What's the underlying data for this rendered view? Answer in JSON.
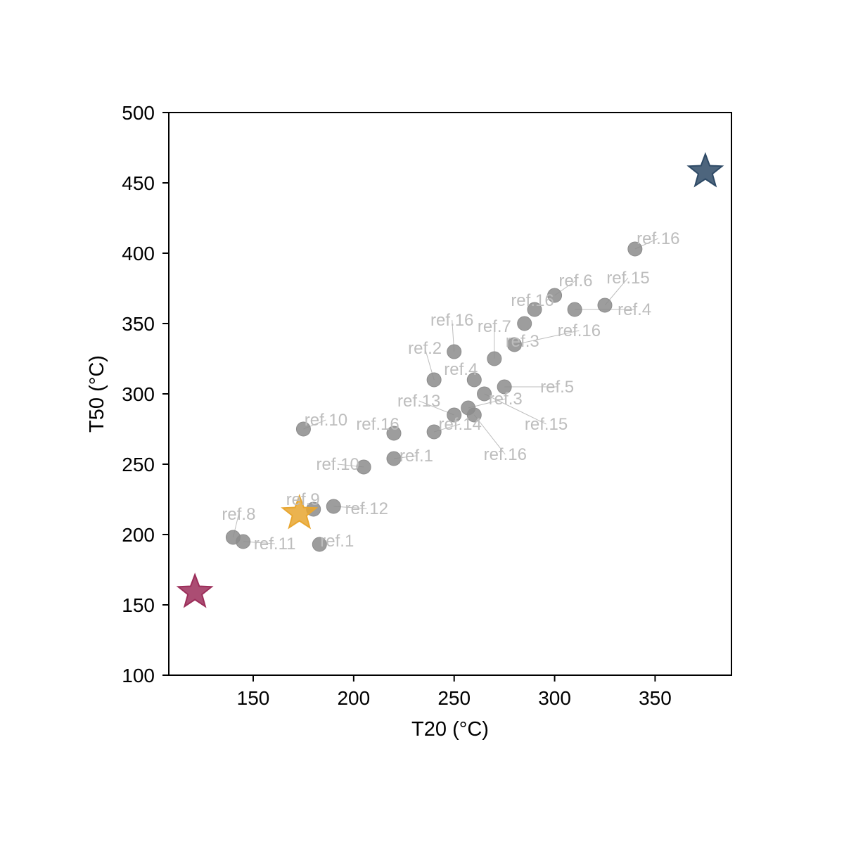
{
  "chart_data": {
    "type": "scatter",
    "xlabel": "T20 (°C)",
    "ylabel": "T50 (°C)",
    "xlim": [
      108,
      388
    ],
    "ylim": [
      100,
      500
    ],
    "xticks": [
      150,
      200,
      250,
      300,
      350
    ],
    "yticks": [
      100,
      150,
      200,
      250,
      300,
      350,
      400,
      450,
      500
    ],
    "grid": false,
    "series": [
      {
        "marker": "circle",
        "color": "#8c8c8c",
        "label_color": "#bdbdbd",
        "points": [
          {
            "x": 340,
            "y": 403,
            "label": "ref.16"
          },
          {
            "x": 300,
            "y": 370,
            "label": "ref.6"
          },
          {
            "x": 290,
            "y": 360,
            "label": "ref.16"
          },
          {
            "x": 310,
            "y": 360,
            "label": "ref.4"
          },
          {
            "x": 325,
            "y": 363,
            "label": "ref.15"
          },
          {
            "x": 285,
            "y": 350,
            "label": "ref.3"
          },
          {
            "x": 280,
            "y": 335,
            "label": "ref.16"
          },
          {
            "x": 270,
            "y": 325,
            "label": "ref.7"
          },
          {
            "x": 250,
            "y": 330,
            "label": "ref.16"
          },
          {
            "x": 240,
            "y": 310,
            "label": "ref.2"
          },
          {
            "x": 260,
            "y": 310,
            "label": "ref.4"
          },
          {
            "x": 275,
            "y": 305,
            "label": "ref.5"
          },
          {
            "x": 265,
            "y": 300,
            "label": "ref.15"
          },
          {
            "x": 257,
            "y": 290,
            "label": "ref.3"
          },
          {
            "x": 250,
            "y": 285,
            "label": "ref.13"
          },
          {
            "x": 260,
            "y": 285,
            "label": "ref.16"
          },
          {
            "x": 240,
            "y": 273,
            "label": "ref.14"
          },
          {
            "x": 220,
            "y": 272,
            "label": "ref.16"
          },
          {
            "x": 175,
            "y": 275,
            "label": "ref.10"
          },
          {
            "x": 220,
            "y": 254,
            "label": "ref.1"
          },
          {
            "x": 205,
            "y": 248,
            "label": "ref.10"
          },
          {
            "x": 180,
            "y": 218,
            "label": "ref.9"
          },
          {
            "x": 190,
            "y": 220,
            "label": "ref.12"
          },
          {
            "x": 140,
            "y": 198,
            "label": "ref.8"
          },
          {
            "x": 145,
            "y": 195,
            "label": "ref.11"
          },
          {
            "x": 183,
            "y": 193,
            "label": "ref.1"
          }
        ]
      },
      {
        "marker": "star",
        "points": [
          {
            "x": 375,
            "y": 459,
            "color": "#2e4a66"
          },
          {
            "x": 173,
            "y": 216,
            "color": "#e8a630"
          },
          {
            "x": 121,
            "y": 160,
            "color": "#9c2e5a"
          }
        ]
      }
    ]
  }
}
